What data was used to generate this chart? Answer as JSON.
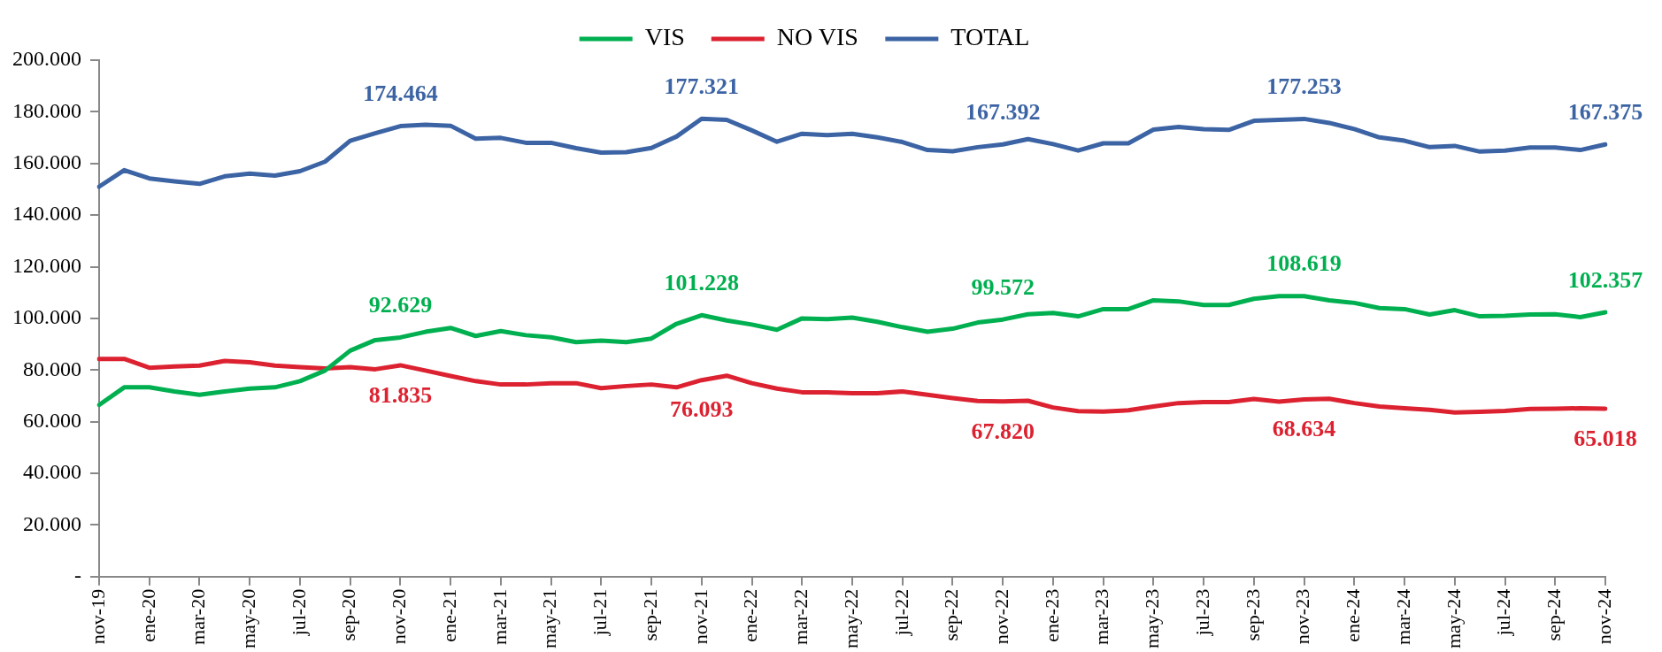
{
  "chart_data": {
    "type": "line",
    "categories": [
      "nov-19",
      null,
      "ene-20",
      null,
      "mar-20",
      null,
      "may-20",
      null,
      "jul-20",
      null,
      "sep-20",
      null,
      "nov-20",
      null,
      "ene-21",
      null,
      "mar-21",
      null,
      "may-21",
      null,
      "jul-21",
      null,
      "sep-21",
      null,
      "nov-21",
      null,
      "ene-22",
      null,
      "mar-22",
      null,
      "may-22",
      null,
      "jul-22",
      null,
      "sep-22",
      null,
      "nov-22",
      null,
      "ene-23",
      null,
      "mar-23",
      null,
      "may-23",
      null,
      "jul-23",
      null,
      "sep-23",
      null,
      "nov-23",
      null,
      "ene-24",
      null,
      "mar-24",
      null,
      "may-24",
      null,
      "jul-24",
      null,
      "sep-24",
      null,
      "nov-24"
    ],
    "series": [
      {
        "name": "VIS",
        "color": "#00b050",
        "values": [
          66500,
          73300,
          73300,
          71700,
          70400,
          71700,
          72800,
          73300,
          75700,
          79800,
          87500,
          91600,
          92629,
          94800,
          96300,
          93200,
          95100,
          93500,
          92700,
          90800,
          91400,
          90800,
          92200,
          97900,
          101228,
          99200,
          97600,
          95600,
          100000,
          99700,
          100300,
          98700,
          96600,
          94800,
          96000,
          98400,
          99572,
          101600,
          102100,
          100800,
          103600,
          103600,
          107000,
          106600,
          105200,
          105200,
          107600,
          108600,
          108619,
          107000,
          106000,
          104000,
          103600,
          101500,
          103200,
          100800,
          101000,
          101500,
          101600,
          100500,
          102357
        ],
        "value_labels": [
          null,
          null,
          null,
          null,
          null,
          null,
          null,
          null,
          null,
          null,
          null,
          null,
          "92.629",
          null,
          null,
          null,
          null,
          null,
          null,
          null,
          null,
          null,
          null,
          null,
          "101.228",
          null,
          null,
          null,
          null,
          null,
          null,
          null,
          null,
          null,
          null,
          null,
          "99.572",
          null,
          null,
          null,
          null,
          null,
          null,
          null,
          null,
          null,
          null,
          null,
          "108.619",
          null,
          null,
          null,
          null,
          null,
          null,
          null,
          null,
          null,
          null,
          null,
          "102.357"
        ]
      },
      {
        "name": "NO VIS",
        "color": "#dc2230",
        "values": [
          84300,
          84300,
          80900,
          81400,
          81700,
          83500,
          83000,
          81700,
          81100,
          80600,
          81100,
          80300,
          81835,
          79800,
          77700,
          75700,
          74400,
          74400,
          74900,
          74900,
          73000,
          73800,
          74400,
          73300,
          76093,
          77800,
          74900,
          72800,
          71400,
          71400,
          71000,
          71000,
          71700,
          70400,
          69100,
          68000,
          67820,
          68100,
          65500,
          64100,
          63900,
          64400,
          65900,
          67200,
          67600,
          67600,
          68800,
          67800,
          68634,
          68900,
          67200,
          65900,
          65200,
          64600,
          63600,
          63800,
          64200,
          64900,
          65000,
          65200,
          65018
        ],
        "value_labels": [
          null,
          null,
          null,
          null,
          null,
          null,
          null,
          null,
          null,
          null,
          null,
          null,
          "81.835",
          null,
          null,
          null,
          null,
          null,
          null,
          null,
          null,
          null,
          null,
          null,
          "76.093",
          null,
          null,
          null,
          null,
          null,
          null,
          null,
          null,
          null,
          null,
          null,
          "67.820",
          null,
          null,
          null,
          null,
          null,
          null,
          null,
          null,
          null,
          null,
          null,
          "68.634",
          null,
          null,
          null,
          null,
          null,
          null,
          null,
          null,
          null,
          null,
          null,
          "65.018"
        ]
      },
      {
        "name": "TOTAL",
        "color": "#3c64a4",
        "values": [
          151000,
          157400,
          154200,
          153100,
          152100,
          155000,
          156100,
          155300,
          157000,
          160700,
          168800,
          171700,
          174464,
          175000,
          174600,
          169600,
          169900,
          168000,
          168000,
          165900,
          164200,
          164400,
          166000,
          170400,
          177321,
          176900,
          172800,
          168400,
          171500,
          171000,
          171500,
          170100,
          168300,
          165200,
          164700,
          166300,
          167392,
          169400,
          167500,
          165000,
          167800,
          167800,
          173100,
          174100,
          173300,
          173000,
          176500,
          176900,
          177253,
          175700,
          173300,
          170100,
          168800,
          166300,
          166800,
          164600,
          165000,
          166200,
          166200,
          165200,
          167375
        ],
        "value_labels": [
          null,
          null,
          null,
          null,
          null,
          null,
          null,
          null,
          null,
          null,
          null,
          null,
          "174.464",
          null,
          null,
          null,
          null,
          null,
          null,
          null,
          null,
          null,
          null,
          null,
          "177.321",
          null,
          null,
          null,
          null,
          null,
          null,
          null,
          null,
          null,
          null,
          null,
          "167.392",
          null,
          null,
          null,
          null,
          null,
          null,
          null,
          null,
          null,
          null,
          null,
          "177.253",
          null,
          null,
          null,
          null,
          null,
          null,
          null,
          null,
          null,
          null,
          null,
          "167.375"
        ]
      }
    ],
    "ylim": [
      0,
      200000
    ],
    "yticks": [
      {
        "value": 0,
        "label": "-"
      },
      {
        "value": 20000,
        "label": "20.000"
      },
      {
        "value": 40000,
        "label": "40.000"
      },
      {
        "value": 60000,
        "label": "60.000"
      },
      {
        "value": 80000,
        "label": "80.000"
      },
      {
        "value": 100000,
        "label": "100.000"
      },
      {
        "value": 120000,
        "label": "120.000"
      },
      {
        "value": 140000,
        "label": "140.000"
      },
      {
        "value": 160000,
        "label": "160.000"
      },
      {
        "value": 180000,
        "label": "180.000"
      },
      {
        "value": 200000,
        "label": "200.000"
      }
    ],
    "grid": false,
    "legend": "top",
    "marker": "none",
    "line_style": "solid"
  }
}
